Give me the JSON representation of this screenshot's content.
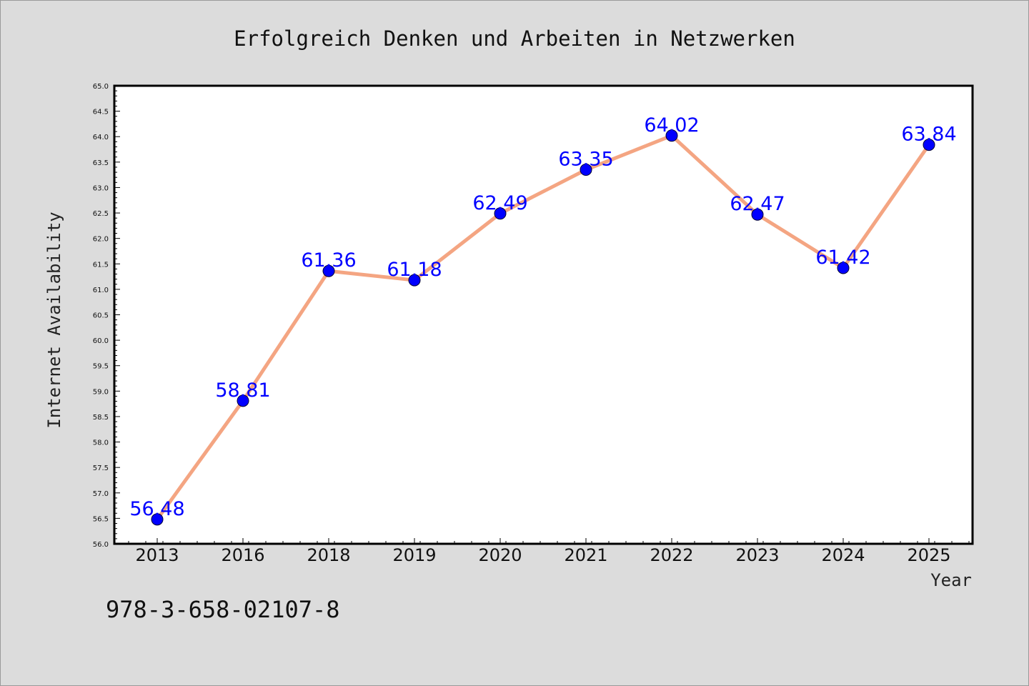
{
  "chart_data": {
    "type": "line",
    "title": "Erfolgreich Denken und Arbeiten in Netzwerken",
    "xlabel": "Year",
    "ylabel": "Internet Availability",
    "categories": [
      "2013",
      "2016",
      "2018",
      "2019",
      "2020",
      "2021",
      "2022",
      "2023",
      "2024",
      "2025"
    ],
    "series": [
      {
        "values": [
          56.48,
          58.81,
          61.36,
          61.18,
          62.49,
          63.35,
          64.02,
          62.47,
          61.42,
          63.84
        ]
      }
    ],
    "data_labels": [
      "56.48",
      "58.81",
      "61.36",
      "61.18",
      "62.49",
      "63.35",
      "64.02",
      "62.47",
      "61.42",
      "63.84"
    ],
    "ylim": [
      56.0,
      65.0
    ],
    "yticks": [
      "56.0",
      "56.5",
      "57.0",
      "57.5",
      "58.0",
      "58.5",
      "59.0",
      "59.5",
      "60.0",
      "60.5",
      "61.0",
      "61.5",
      "62.0",
      "62.5",
      "63.0",
      "63.5",
      "64.0",
      "64.5",
      "65.0"
    ],
    "grid": false,
    "line_color": "#f4a582",
    "marker_color": "#0000ff",
    "label_color": "#0000ff",
    "background_color": "#dcdcdc",
    "plot_background_color": "#ffffff"
  },
  "footer": {
    "isbn": "978-3-658-02107-8"
  }
}
